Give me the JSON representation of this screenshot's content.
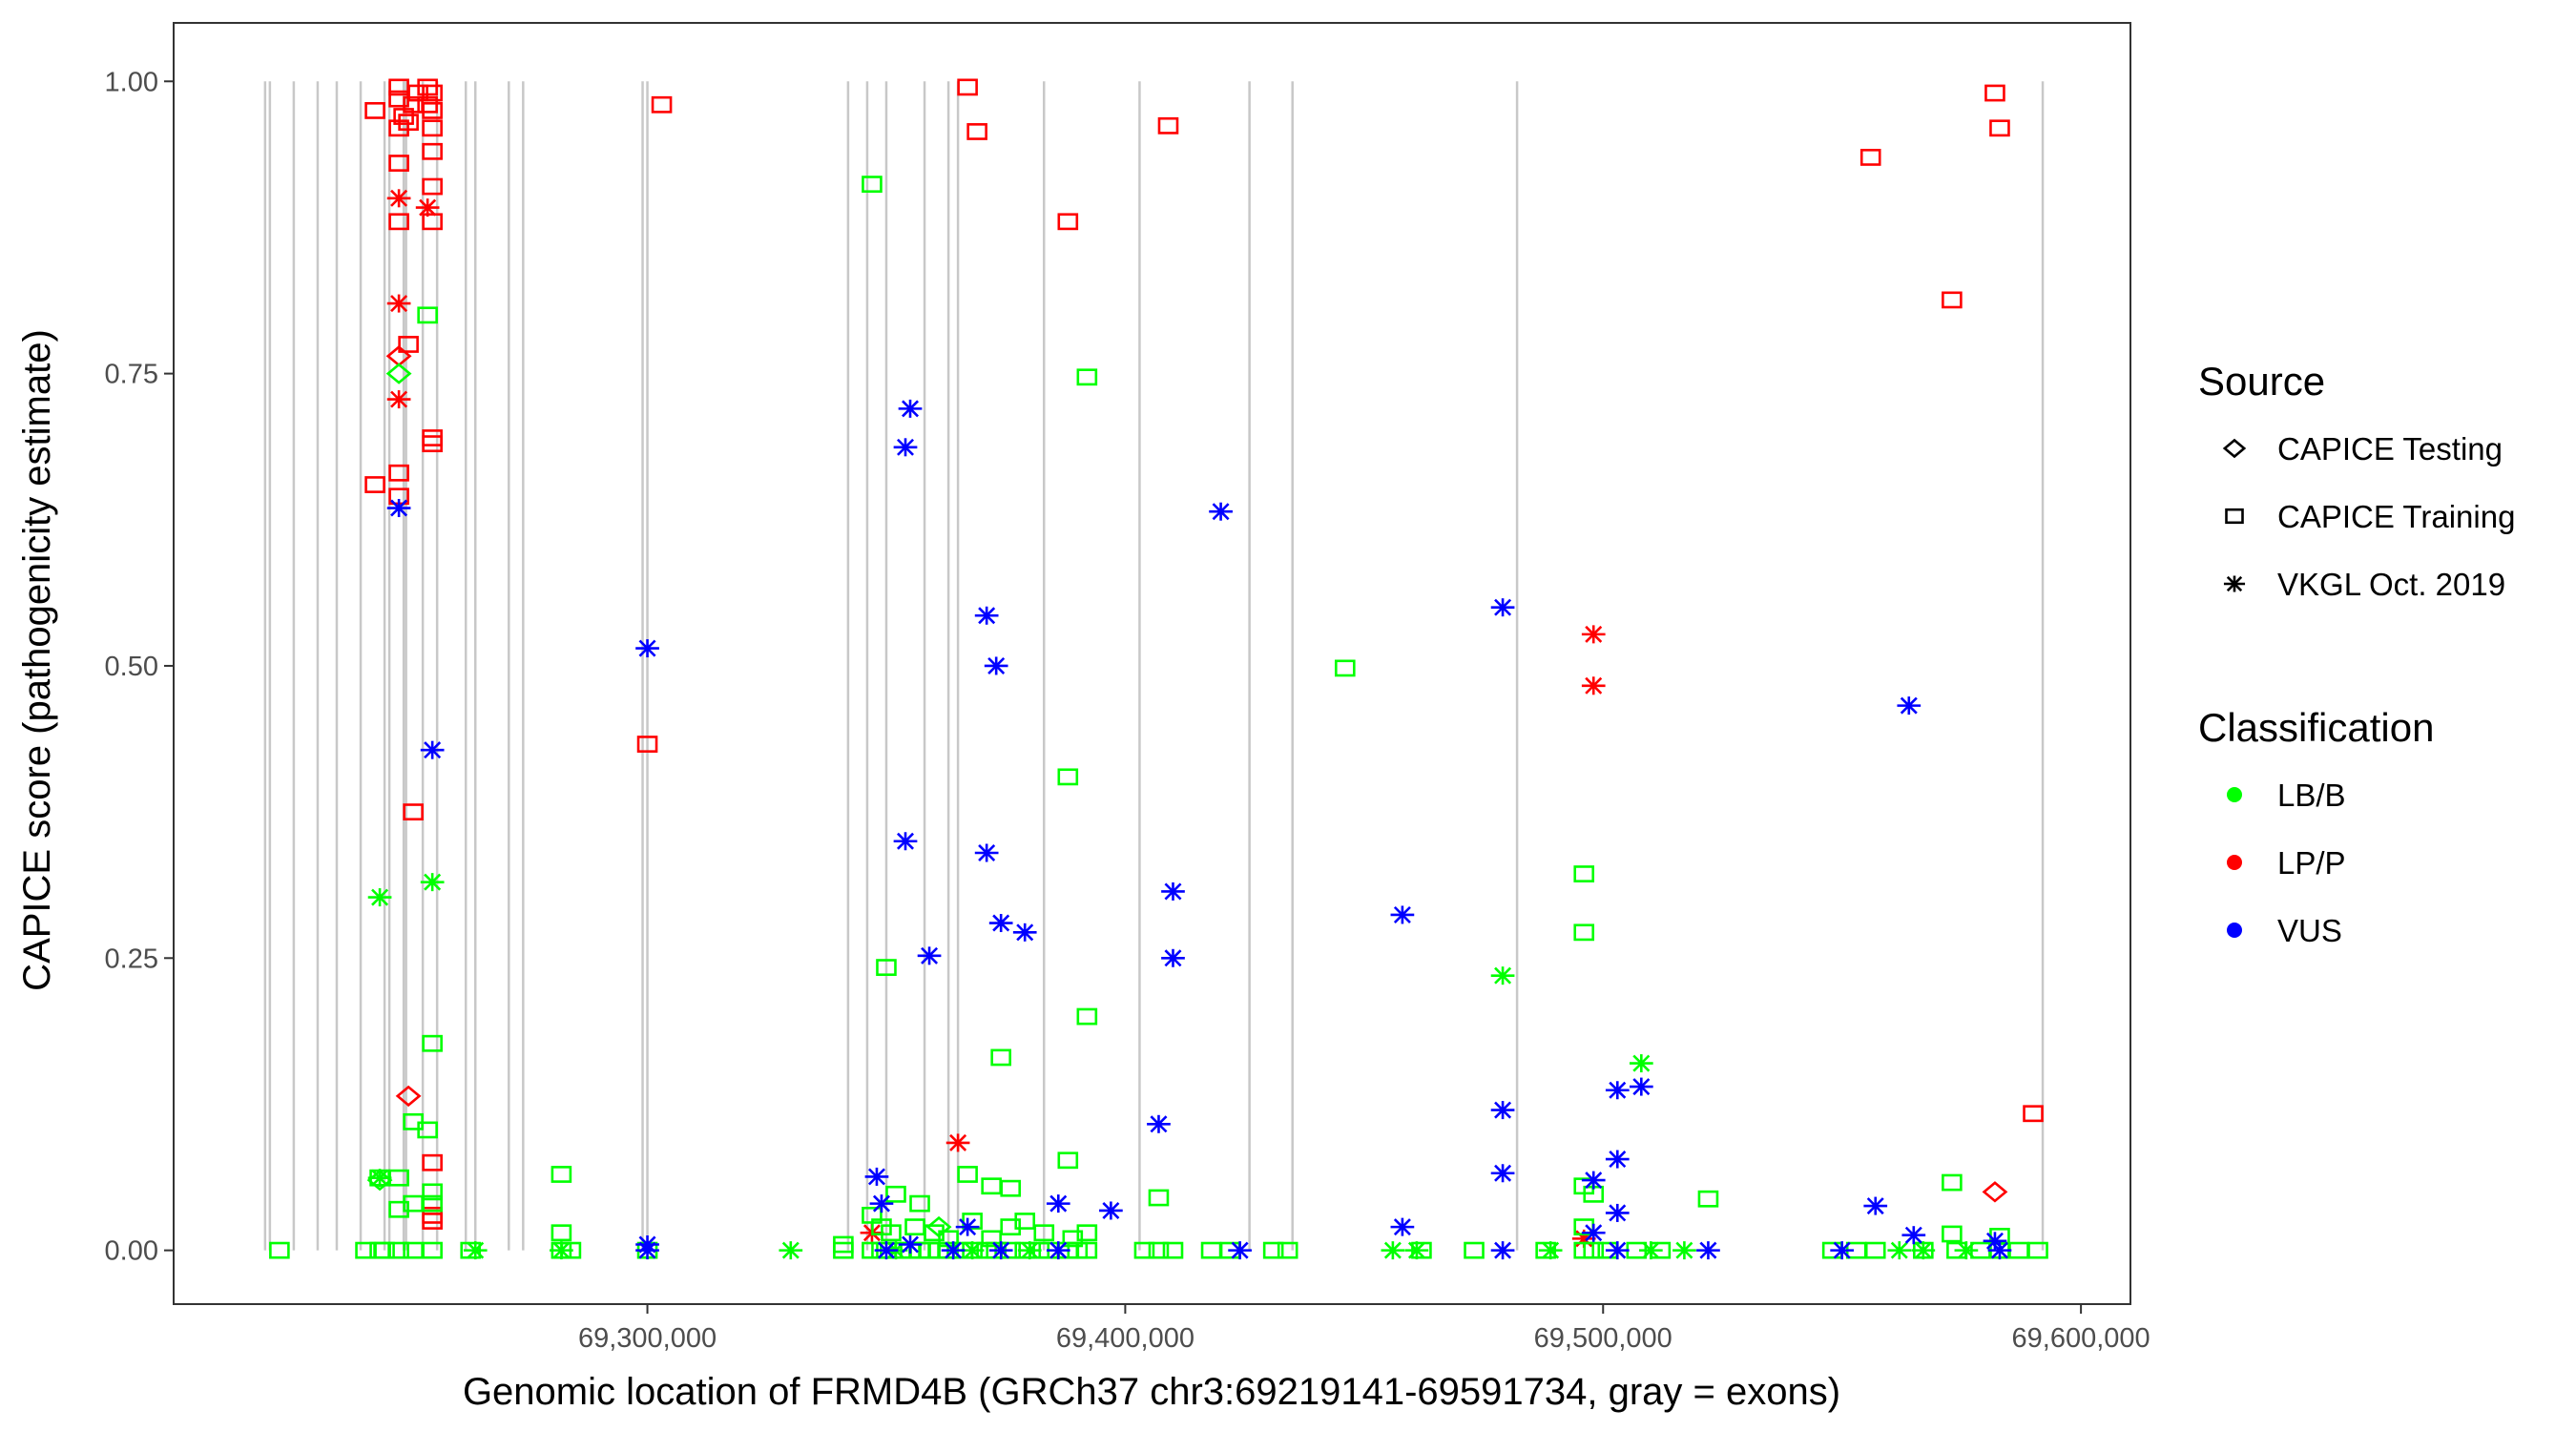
{
  "chart_data": {
    "type": "scatter",
    "xlabel": "Genomic location of FRMD4B (GRCh37 chr3:69219141-69591734, gray = exons)",
    "ylabel": "CAPICE score (pathogenicity estimate)",
    "xlim": [
      69200860,
      69610360
    ],
    "ylim": [
      -0.046,
      1.05
    ],
    "x_ticks": [
      69300000,
      69400000,
      69500000,
      69600000
    ],
    "x_tick_labels": [
      "69,300,000",
      "69,400,000",
      "69,500,000",
      "69,600,000"
    ],
    "y_ticks": [
      0,
      0.25,
      0.5,
      0.75,
      1.0
    ],
    "y_tick_labels": [
      "0.00",
      "0.25",
      "0.50",
      "0.75",
      "1.00"
    ],
    "grid": false,
    "legend_placement": "right",
    "legend": {
      "source_title": "Source",
      "source_items": [
        {
          "key": "D",
          "label": "CAPICE Testing",
          "shape": "diamond"
        },
        {
          "key": "T",
          "label": "CAPICE Training",
          "shape": "square"
        },
        {
          "key": "V",
          "label": "VKGL Oct. 2019",
          "shape": "asterisk"
        }
      ],
      "class_title": "Classification",
      "class_items": [
        {
          "key": "B",
          "label": "LB/B",
          "color": "#00ff00"
        },
        {
          "key": "P",
          "label": "LP/P",
          "color": "#ff0000"
        },
        {
          "key": "U",
          "label": "VUS",
          "color": "#0000ff"
        }
      ]
    },
    "exons": [
      69220000,
      69221000,
      69226000,
      69231000,
      69235000,
      69240000,
      69245000,
      69246000,
      69249000,
      69249500,
      69253000,
      69256000,
      69262000,
      69264000,
      69271000,
      69274000,
      69299000,
      69300000,
      69342000,
      69346000,
      69350000,
      69358000,
      69363000,
      69365000,
      69383000,
      69403000,
      69426000,
      69435000,
      69482000,
      69592000
    ],
    "points_columns": [
      "position",
      "score",
      "source",
      "classification"
    ],
    "points": [
      [
        69243000,
        0.975,
        "T",
        "P"
      ],
      [
        69248000,
        0.995,
        "T",
        "P"
      ],
      [
        69248000,
        0.985,
        "T",
        "P"
      ],
      [
        69248000,
        0.96,
        "T",
        "P"
      ],
      [
        69249000,
        0.97,
        "T",
        "P"
      ],
      [
        69250000,
        0.965,
        "T",
        "P"
      ],
      [
        69251000,
        0.98,
        "T",
        "P"
      ],
      [
        69252000,
        0.99,
        "T",
        "P"
      ],
      [
        69254000,
        0.995,
        "T",
        "P"
      ],
      [
        69254000,
        0.98,
        "T",
        "P"
      ],
      [
        69255000,
        0.99,
        "T",
        "P"
      ],
      [
        69255000,
        0.975,
        "T",
        "P"
      ],
      [
        69255000,
        0.96,
        "T",
        "P"
      ],
      [
        69255000,
        0.94,
        "T",
        "P"
      ],
      [
        69255000,
        0.91,
        "T",
        "P"
      ],
      [
        69248000,
        0.93,
        "T",
        "P"
      ],
      [
        69248000,
        0.88,
        "T",
        "P"
      ],
      [
        69255000,
        0.88,
        "T",
        "P"
      ],
      [
        69303000,
        0.98,
        "T",
        "P"
      ],
      [
        69367000,
        0.995,
        "T",
        "P"
      ],
      [
        69369000,
        0.957,
        "T",
        "P"
      ],
      [
        69409000,
        0.962,
        "T",
        "P"
      ],
      [
        69388000,
        0.88,
        "T",
        "P"
      ],
      [
        69582000,
        0.99,
        "T",
        "P"
      ],
      [
        69583000,
        0.96,
        "T",
        "P"
      ],
      [
        69556000,
        0.935,
        "T",
        "P"
      ],
      [
        69573000,
        0.813,
        "T",
        "P"
      ],
      [
        69250000,
        0.775,
        "T",
        "P"
      ],
      [
        69255000,
        0.695,
        "T",
        "P"
      ],
      [
        69255000,
        0.69,
        "T",
        "P"
      ],
      [
        69248000,
        0.665,
        "T",
        "P"
      ],
      [
        69243000,
        0.655,
        "T",
        "P"
      ],
      [
        69248000,
        0.645,
        "T",
        "P"
      ],
      [
        69300000,
        0.433,
        "T",
        "P"
      ],
      [
        69251000,
        0.375,
        "T",
        "P"
      ],
      [
        69590000,
        0.117,
        "T",
        "P"
      ],
      [
        69255000,
        0.075,
        "T",
        "P"
      ],
      [
        69255000,
        0.03,
        "T",
        "P"
      ],
      [
        69255000,
        0.025,
        "T",
        "P"
      ],
      [
        69248000,
        0.9,
        "V",
        "P"
      ],
      [
        69254000,
        0.892,
        "V",
        "P"
      ],
      [
        69248000,
        0.81,
        "V",
        "P"
      ],
      [
        69248000,
        0.728,
        "V",
        "P"
      ],
      [
        69365000,
        0.092,
        "V",
        "P"
      ],
      [
        69498000,
        0.527,
        "V",
        "P"
      ],
      [
        69498000,
        0.483,
        "V",
        "P"
      ],
      [
        69347000,
        0.015,
        "V",
        "P"
      ],
      [
        69496000,
        0.01,
        "V",
        "P"
      ],
      [
        69248000,
        0.765,
        "D",
        "P"
      ],
      [
        69250000,
        0.132,
        "D",
        "P"
      ],
      [
        69582000,
        0.05,
        "D",
        "P"
      ],
      [
        69248000,
        0.75,
        "D",
        "B"
      ],
      [
        69361000,
        0.02,
        "D",
        "B"
      ],
      [
        69244000,
        0.06,
        "D",
        "B"
      ],
      [
        69254000,
        0.8,
        "T",
        "B"
      ],
      [
        69347000,
        0.912,
        "T",
        "B"
      ],
      [
        69392000,
        0.747,
        "T",
        "B"
      ],
      [
        69446000,
        0.498,
        "T",
        "B"
      ],
      [
        69388000,
        0.405,
        "T",
        "B"
      ],
      [
        69496000,
        0.322,
        "T",
        "B"
      ],
      [
        69496000,
        0.272,
        "T",
        "B"
      ],
      [
        69350000,
        0.242,
        "T",
        "B"
      ],
      [
        69392000,
        0.2,
        "T",
        "B"
      ],
      [
        69374000,
        0.165,
        "T",
        "B"
      ],
      [
        69255000,
        0.177,
        "T",
        "B"
      ],
      [
        69251000,
        0.11,
        "T",
        "B"
      ],
      [
        69254000,
        0.103,
        "T",
        "B"
      ],
      [
        69282000,
        0.065,
        "T",
        "B"
      ],
      [
        69248000,
        0.062,
        "T",
        "B"
      ],
      [
        69244000,
        0.062,
        "T",
        "B"
      ],
      [
        69388000,
        0.077,
        "T",
        "B"
      ],
      [
        69367000,
        0.065,
        "T",
        "B"
      ],
      [
        69372000,
        0.055,
        "T",
        "B"
      ],
      [
        69376000,
        0.053,
        "T",
        "B"
      ],
      [
        69352000,
        0.048,
        "T",
        "B"
      ],
      [
        69407000,
        0.045,
        "T",
        "B"
      ],
      [
        69522000,
        0.044,
        "T",
        "B"
      ],
      [
        69573000,
        0.058,
        "T",
        "B"
      ],
      [
        69496000,
        0.055,
        "T",
        "B"
      ],
      [
        69357000,
        0.04,
        "T",
        "B"
      ],
      [
        69255000,
        0.05,
        "T",
        "B"
      ],
      [
        69255000,
        0.04,
        "T",
        "B"
      ],
      [
        69251000,
        0.04,
        "T",
        "B"
      ],
      [
        69248000,
        0.035,
        "T",
        "B"
      ],
      [
        69282000,
        0.015,
        "T",
        "B"
      ],
      [
        69341000,
        0.005,
        "T",
        "B"
      ],
      [
        69347000,
        0.03,
        "T",
        "B"
      ],
      [
        69349000,
        0.02,
        "T",
        "B"
      ],
      [
        69351000,
        0.015,
        "T",
        "B"
      ],
      [
        69356000,
        0.02,
        "T",
        "B"
      ],
      [
        69360000,
        0.015,
        "T",
        "B"
      ],
      [
        69363000,
        0.01,
        "T",
        "B"
      ],
      [
        69368000,
        0.025,
        "T",
        "B"
      ],
      [
        69372000,
        0.01,
        "T",
        "B"
      ],
      [
        69376000,
        0.02,
        "T",
        "B"
      ],
      [
        69379000,
        0.025,
        "T",
        "B"
      ],
      [
        69383000,
        0.015,
        "T",
        "B"
      ],
      [
        69389000,
        0.01,
        "T",
        "B"
      ],
      [
        69392000,
        0.015,
        "T",
        "B"
      ],
      [
        69573000,
        0.014,
        "T",
        "B"
      ],
      [
        69583000,
        0.012,
        "T",
        "B"
      ],
      [
        69496000,
        0.02,
        "T",
        "B"
      ],
      [
        69498000,
        0.048,
        "T",
        "B"
      ],
      [
        69223000,
        0,
        "T",
        "B"
      ],
      [
        69241000,
        0,
        "T",
        "B"
      ],
      [
        69244000,
        0,
        "T",
        "B"
      ],
      [
        69245000,
        0,
        "T",
        "B"
      ],
      [
        69248000,
        0,
        "T",
        "B"
      ],
      [
        69251000,
        0,
        "T",
        "B"
      ],
      [
        69255000,
        0,
        "T",
        "B"
      ],
      [
        69263000,
        0,
        "T",
        "B"
      ],
      [
        69282000,
        0,
        "T",
        "B"
      ],
      [
        69284000,
        0,
        "T",
        "B"
      ],
      [
        69300000,
        0,
        "T",
        "B"
      ],
      [
        69341000,
        0,
        "T",
        "B"
      ],
      [
        69347000,
        0,
        "T",
        "B"
      ],
      [
        69349000,
        0,
        "T",
        "B"
      ],
      [
        69350000,
        0,
        "T",
        "B"
      ],
      [
        69353000,
        0,
        "T",
        "B"
      ],
      [
        69355000,
        0,
        "T",
        "B"
      ],
      [
        69357000,
        0,
        "T",
        "B"
      ],
      [
        69359000,
        0,
        "T",
        "B"
      ],
      [
        69361000,
        0,
        "T",
        "B"
      ],
      [
        69363000,
        0,
        "T",
        "B"
      ],
      [
        69366000,
        0,
        "T",
        "B"
      ],
      [
        69368000,
        0,
        "T",
        "B"
      ],
      [
        69371000,
        0,
        "T",
        "B"
      ],
      [
        69373000,
        0,
        "T",
        "B"
      ],
      [
        69376000,
        0,
        "T",
        "B"
      ],
      [
        69379000,
        0,
        "T",
        "B"
      ],
      [
        69382000,
        0,
        "T",
        "B"
      ],
      [
        69384000,
        0,
        "T",
        "B"
      ],
      [
        69388000,
        0,
        "T",
        "B"
      ],
      [
        69390000,
        0,
        "T",
        "B"
      ],
      [
        69392000,
        0,
        "T",
        "B"
      ],
      [
        69404000,
        0,
        "T",
        "B"
      ],
      [
        69407000,
        0,
        "T",
        "B"
      ],
      [
        69410000,
        0,
        "T",
        "B"
      ],
      [
        69418000,
        0,
        "T",
        "B"
      ],
      [
        69422000,
        0,
        "T",
        "B"
      ],
      [
        69431000,
        0,
        "T",
        "B"
      ],
      [
        69434000,
        0,
        "T",
        "B"
      ],
      [
        69462000,
        0,
        "T",
        "B"
      ],
      [
        69473000,
        0,
        "T",
        "B"
      ],
      [
        69488000,
        0,
        "T",
        "B"
      ],
      [
        69496000,
        0,
        "T",
        "B"
      ],
      [
        69498000,
        0,
        "T",
        "B"
      ],
      [
        69501000,
        0,
        "T",
        "B"
      ],
      [
        69507000,
        0,
        "T",
        "B"
      ],
      [
        69512000,
        0,
        "T",
        "B"
      ],
      [
        69548000,
        0,
        "T",
        "B"
      ],
      [
        69553000,
        0,
        "T",
        "B"
      ],
      [
        69557000,
        0,
        "T",
        "B"
      ],
      [
        69567000,
        0,
        "T",
        "B"
      ],
      [
        69574000,
        0,
        "T",
        "B"
      ],
      [
        69579000,
        0,
        "T",
        "B"
      ],
      [
        69583000,
        0,
        "T",
        "B"
      ],
      [
        69587000,
        0,
        "T",
        "B"
      ],
      [
        69591000,
        0,
        "T",
        "B"
      ],
      [
        69244000,
        0.302,
        "V",
        "B"
      ],
      [
        69255000,
        0.315,
        "V",
        "B"
      ],
      [
        69479000,
        0.235,
        "V",
        "B"
      ],
      [
        69508000,
        0.16,
        "V",
        "B"
      ],
      [
        69244000,
        0.062,
        "V",
        "B"
      ],
      [
        69330000,
        0,
        "V",
        "B"
      ],
      [
        69264000,
        0,
        "V",
        "B"
      ],
      [
        69282000,
        0,
        "V",
        "B"
      ],
      [
        69352000,
        0,
        "V",
        "B"
      ],
      [
        69368000,
        0,
        "V",
        "B"
      ],
      [
        69380000,
        0,
        "V",
        "B"
      ],
      [
        69456000,
        0,
        "V",
        "B"
      ],
      [
        69461000,
        0,
        "V",
        "B"
      ],
      [
        69489000,
        0,
        "V",
        "B"
      ],
      [
        69510000,
        0,
        "V",
        "B"
      ],
      [
        69517000,
        0,
        "V",
        "B"
      ],
      [
        69562000,
        0,
        "V",
        "B"
      ],
      [
        69576000,
        0,
        "V",
        "B"
      ],
      [
        69567000,
        0,
        "V",
        "B"
      ],
      [
        69248000,
        0.635,
        "V",
        "U"
      ],
      [
        69355000,
        0.72,
        "V",
        "U"
      ],
      [
        69354000,
        0.687,
        "V",
        "U"
      ],
      [
        69420000,
        0.632,
        "V",
        "U"
      ],
      [
        69479000,
        0.55,
        "V",
        "U"
      ],
      [
        69300000,
        0.515,
        "V",
        "U"
      ],
      [
        69371000,
        0.543,
        "V",
        "U"
      ],
      [
        69373000,
        0.5,
        "V",
        "U"
      ],
      [
        69564000,
        0.466,
        "V",
        "U"
      ],
      [
        69255000,
        0.428,
        "V",
        "U"
      ],
      [
        69354000,
        0.35,
        "V",
        "U"
      ],
      [
        69371000,
        0.34,
        "V",
        "U"
      ],
      [
        69410000,
        0.307,
        "V",
        "U"
      ],
      [
        69458000,
        0.287,
        "V",
        "U"
      ],
      [
        69374000,
        0.28,
        "V",
        "U"
      ],
      [
        69379000,
        0.272,
        "V",
        "U"
      ],
      [
        69359000,
        0.252,
        "V",
        "U"
      ],
      [
        69410000,
        0.25,
        "V",
        "U"
      ],
      [
        69508000,
        0.14,
        "V",
        "U"
      ],
      [
        69503000,
        0.137,
        "V",
        "U"
      ],
      [
        69479000,
        0.12,
        "V",
        "U"
      ],
      [
        69407000,
        0.108,
        "V",
        "U"
      ],
      [
        69503000,
        0.078,
        "V",
        "U"
      ],
      [
        69479000,
        0.066,
        "V",
        "U"
      ],
      [
        69498000,
        0.06,
        "V",
        "U"
      ],
      [
        69348000,
        0.063,
        "V",
        "U"
      ],
      [
        69557000,
        0.038,
        "V",
        "U"
      ],
      [
        69397000,
        0.034,
        "V",
        "U"
      ],
      [
        69386000,
        0.04,
        "V",
        "U"
      ],
      [
        69503000,
        0.032,
        "V",
        "U"
      ],
      [
        69349000,
        0.04,
        "V",
        "U"
      ],
      [
        69458000,
        0.02,
        "V",
        "U"
      ],
      [
        69367000,
        0.02,
        "V",
        "U"
      ],
      [
        69498000,
        0.015,
        "V",
        "U"
      ],
      [
        69565000,
        0.013,
        "V",
        "U"
      ],
      [
        69582000,
        0.008,
        "V",
        "U"
      ],
      [
        69300000,
        0.005,
        "V",
        "U"
      ],
      [
        69300000,
        0,
        "V",
        "U"
      ],
      [
        69355000,
        0.005,
        "V",
        "U"
      ],
      [
        69364000,
        0,
        "V",
        "U"
      ],
      [
        69374000,
        0,
        "V",
        "U"
      ],
      [
        69386000,
        0,
        "V",
        "U"
      ],
      [
        69424000,
        0,
        "V",
        "U"
      ],
      [
        69479000,
        0,
        "V",
        "U"
      ],
      [
        69503000,
        0,
        "V",
        "U"
      ],
      [
        69522000,
        0,
        "V",
        "U"
      ],
      [
        69550000,
        0,
        "V",
        "U"
      ],
      [
        69583000,
        0,
        "V",
        "U"
      ],
      [
        69350000,
        0,
        "V",
        "U"
      ]
    ]
  }
}
